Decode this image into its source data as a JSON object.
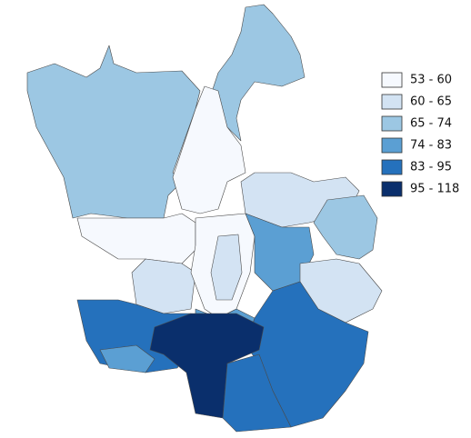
{
  "legend": {
    "items": [
      {
        "label": "53 - 60",
        "color": "#f6f9fe"
      },
      {
        "label": "60 - 65",
        "color": "#d3e3f3"
      },
      {
        "label": "65 - 74",
        "color": "#9cc7e3"
      },
      {
        "label": "74 - 83",
        "color": "#5b9fd3"
      },
      {
        "label": "83 - 95",
        "color": "#2571bc"
      },
      {
        "label": "95 - 118",
        "color": "#0a2f6c"
      }
    ]
  }
}
